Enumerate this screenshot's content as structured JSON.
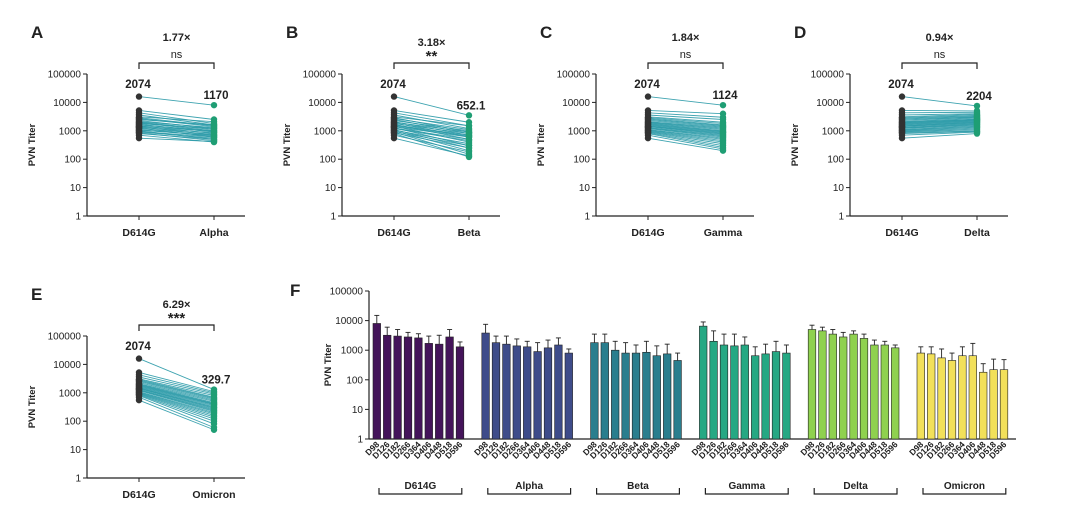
{
  "colors": {
    "line": "#2a9aa8",
    "d614g_dot": "#333333",
    "variant_dot": "#1f9e74",
    "axis": "#222222",
    "groups": [
      "#44145a",
      "#3e4c8a",
      "#2a7e8e",
      "#25a883",
      "#8fd14f",
      "#f2e05a"
    ]
  },
  "paired_ticks": [
    "1",
    "10",
    "100",
    "1000",
    "10000",
    "100000"
  ],
  "bar_ticks": [
    "1",
    "10",
    "100",
    "1000",
    "10000",
    "100000"
  ],
  "chart_data": [
    {
      "type": "scatter",
      "panel": "A",
      "ylabel": "PVN Titer",
      "categories": [
        "D614G",
        "Alpha"
      ],
      "scale": "log",
      "ylim": [
        1,
        100000
      ],
      "gmt": {
        "d614g": "2074",
        "variant": "1170"
      },
      "fold": "1.77×",
      "significance": "ns",
      "n_pairs": 30,
      "d614g_values": [
        16000,
        5200,
        4300,
        3600,
        3100,
        2900,
        2700,
        2500,
        2300,
        2100,
        2000,
        1900,
        1800,
        1700,
        1600,
        1500,
        1450,
        1400,
        1300,
        1250,
        1200,
        1100,
        1050,
        1000,
        950,
        900,
        850,
        800,
        700,
        550
      ],
      "variant_values": [
        8000,
        2500,
        1800,
        1600,
        2100,
        1500,
        1400,
        1600,
        1200,
        1300,
        1100,
        1000,
        1200,
        900,
        1000,
        800,
        950,
        700,
        850,
        600,
        750,
        650,
        700,
        500,
        600,
        550,
        450,
        500,
        400,
        420
      ]
    },
    {
      "type": "scatter",
      "panel": "B",
      "ylabel": "PVN Titer",
      "categories": [
        "D614G",
        "Beta"
      ],
      "scale": "log",
      "ylim": [
        1,
        100000
      ],
      "gmt": {
        "d614g": "2074",
        "variant": "652.1"
      },
      "fold": "3.18×",
      "significance": "**",
      "n_pairs": 30,
      "d614g_values": [
        16000,
        5200,
        4300,
        3600,
        3100,
        2900,
        2700,
        2500,
        2300,
        2100,
        2000,
        1900,
        1800,
        1700,
        1600,
        1500,
        1450,
        1400,
        1300,
        1250,
        1200,
        1100,
        1050,
        1000,
        950,
        900,
        850,
        800,
        700,
        550
      ],
      "variant_values": [
        3500,
        2000,
        1500,
        1200,
        1500,
        900,
        1100,
        800,
        1000,
        700,
        900,
        600,
        800,
        500,
        700,
        650,
        400,
        600,
        300,
        500,
        450,
        250,
        350,
        200,
        300,
        150,
        250,
        120,
        180,
        130
      ]
    },
    {
      "type": "scatter",
      "panel": "C",
      "ylabel": "PVN Titer",
      "categories": [
        "D614G",
        "Gamma"
      ],
      "scale": "log",
      "ylim": [
        1,
        100000
      ],
      "gmt": {
        "d614g": "2074",
        "variant": "1124"
      },
      "fold": "1.84×",
      "significance": "ns",
      "n_pairs": 30,
      "d614g_values": [
        16000,
        5200,
        4300,
        3600,
        3100,
        2900,
        2700,
        2500,
        2300,
        2100,
        2000,
        1900,
        1800,
        1700,
        1600,
        1500,
        1450,
        1400,
        1300,
        1250,
        1200,
        1100,
        1050,
        1000,
        950,
        900,
        850,
        800,
        700,
        550
      ],
      "variant_values": [
        8000,
        4000,
        3000,
        2500,
        2000,
        1800,
        1600,
        1500,
        1400,
        1300,
        1200,
        1100,
        1000,
        950,
        900,
        850,
        800,
        750,
        700,
        650,
        600,
        550,
        500,
        450,
        400,
        350,
        300,
        260,
        230,
        200
      ]
    },
    {
      "type": "scatter",
      "panel": "D",
      "ylabel": "PVN Titer",
      "categories": [
        "D614G",
        "Delta"
      ],
      "scale": "log",
      "ylim": [
        1,
        100000
      ],
      "gmt": {
        "d614g": "2074",
        "variant": "2204"
      },
      "fold": "0.94×",
      "significance": "ns",
      "n_pairs": 30,
      "d614g_values": [
        16000,
        5200,
        4300,
        3600,
        3100,
        2900,
        2700,
        2500,
        2300,
        2100,
        2000,
        1900,
        1800,
        1700,
        1600,
        1500,
        1450,
        1400,
        1300,
        1250,
        1200,
        1100,
        1050,
        1000,
        950,
        900,
        850,
        800,
        700,
        550
      ],
      "variant_values": [
        7500,
        5000,
        4500,
        4000,
        3800,
        3500,
        3300,
        3100,
        3000,
        2800,
        2600,
        2500,
        2400,
        2300,
        2200,
        2100,
        2000,
        1900,
        1800,
        1700,
        1600,
        1500,
        1400,
        1300,
        1200,
        1100,
        1000,
        950,
        900,
        800
      ]
    },
    {
      "type": "scatter",
      "panel": "E",
      "ylabel": "PVN Titer",
      "categories": [
        "D614G",
        "Omicron"
      ],
      "scale": "log",
      "ylim": [
        1,
        100000
      ],
      "gmt": {
        "d614g": "2074",
        "variant": "329.7"
      },
      "fold": "6.29×",
      "significance": "***",
      "n_pairs": 30,
      "d614g_values": [
        16000,
        5200,
        4300,
        3600,
        3100,
        2900,
        2700,
        2500,
        2300,
        2100,
        2000,
        1900,
        1800,
        1700,
        1600,
        1500,
        1450,
        1400,
        1300,
        1250,
        1200,
        1100,
        1050,
        1000,
        950,
        900,
        850,
        800,
        700,
        550
      ],
      "variant_values": [
        1300,
        1100,
        1000,
        900,
        800,
        700,
        650,
        600,
        550,
        500,
        450,
        420,
        400,
        380,
        350,
        320,
        300,
        280,
        260,
        240,
        220,
        200,
        180,
        160,
        140,
        120,
        100,
        80,
        60,
        50
      ]
    },
    {
      "type": "bar",
      "panel": "F",
      "ylabel": "PVN Titer",
      "scale": "log",
      "ylim": [
        1,
        100000
      ],
      "categories": [
        "D98",
        "D126",
        "D182",
        "D266",
        "D364",
        "D406",
        "D448",
        "D518",
        "D596"
      ],
      "series": [
        {
          "name": "D614G",
          "values": [
            8000,
            3200,
            3000,
            2800,
            2600,
            1700,
            1600,
            2800,
            1300
          ],
          "errors": [
            15000,
            6000,
            5000,
            4000,
            3600,
            3000,
            3200,
            5000,
            1900
          ]
        },
        {
          "name": "Alpha",
          "values": [
            3800,
            1800,
            1600,
            1400,
            1300,
            900,
            1200,
            1500,
            800
          ],
          "errors": [
            7500,
            3000,
            3000,
            2400,
            2000,
            1800,
            2200,
            2600,
            1100
          ]
        },
        {
          "name": "Beta",
          "values": [
            1800,
            1800,
            1000,
            800,
            800,
            850,
            650,
            750,
            450
          ],
          "errors": [
            3500,
            3500,
            2000,
            1800,
            1500,
            2000,
            1400,
            1600,
            800
          ]
        },
        {
          "name": "Gamma",
          "values": [
            6500,
            2000,
            1500,
            1400,
            1500,
            650,
            750,
            900,
            800
          ],
          "errors": [
            9000,
            4500,
            3500,
            3500,
            2800,
            1300,
            1600,
            2000,
            1500
          ]
        },
        {
          "name": "Delta",
          "values": [
            5000,
            4500,
            3500,
            2800,
            3500,
            2500,
            1500,
            1500,
            1200
          ],
          "errors": [
            7000,
            6000,
            5000,
            4000,
            4500,
            3500,
            2200,
            2000,
            1500
          ]
        },
        {
          "name": "Omicron",
          "values": [
            800,
            750,
            550,
            450,
            650,
            650,
            180,
            220,
            220
          ],
          "errors": [
            1300,
            1300,
            1100,
            800,
            1300,
            1700,
            350,
            500,
            480
          ]
        }
      ]
    }
  ],
  "panel_f_groups": [
    "D614G",
    "Alpha",
    "Beta",
    "Gamma",
    "Delta",
    "Omicron"
  ]
}
